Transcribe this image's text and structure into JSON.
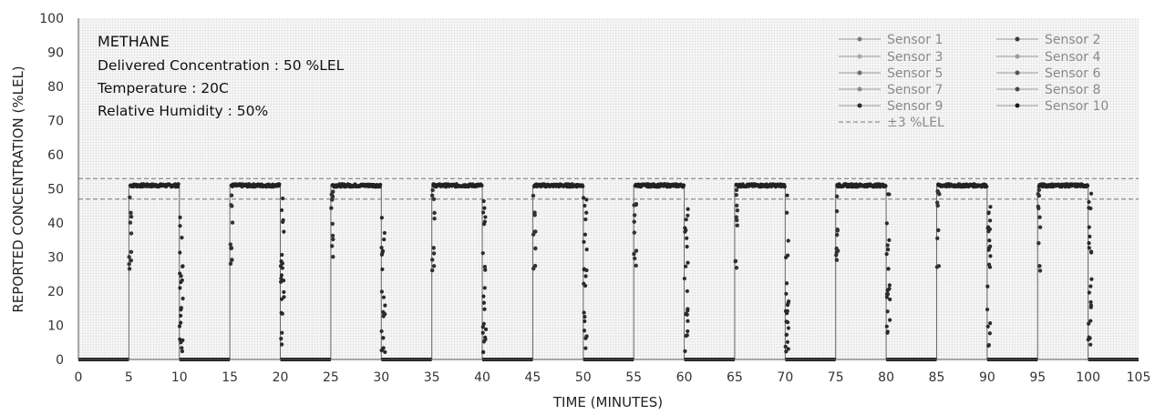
{
  "chart_data": {
    "type": "scatter",
    "xlabel": "TIME (MINUTES)",
    "ylabel": "REPORTED CONCENTRATION  (%LEL)",
    "xlim": [
      0,
      105
    ],
    "ylim": [
      0,
      100
    ],
    "xticks": [
      0,
      5,
      10,
      15,
      20,
      25,
      30,
      35,
      40,
      45,
      50,
      55,
      60,
      65,
      70,
      75,
      80,
      85,
      90,
      95,
      100,
      105
    ],
    "yticks": [
      0,
      10,
      20,
      30,
      40,
      50,
      60,
      70,
      80,
      90,
      100
    ],
    "grid": false,
    "legend_position": "top-right",
    "annotations": {
      "title": "METHANE",
      "lines": [
        "Delivered Concentration : 50 %LEL",
        "Temperature : 20C",
        "Relative Humidity : 50%"
      ]
    },
    "reference_lines": {
      "label": "±3 %LEL",
      "values": [
        53,
        47
      ],
      "style": "dashed"
    },
    "exposure": {
      "on_starts": [
        5,
        15,
        25,
        35,
        45,
        55,
        65,
        75,
        85,
        95
      ],
      "on_duration": 5,
      "plateau": 51,
      "baseline": 0
    },
    "series": [
      {
        "name": "Sensor 1",
        "color": "#7a7a7a"
      },
      {
        "name": "Sensor 2",
        "color": "#3a3a3a"
      },
      {
        "name": "Sensor 3",
        "color": "#a8a8a8"
      },
      {
        "name": "Sensor 4",
        "color": "#9a9a9a"
      },
      {
        "name": "Sensor 5",
        "color": "#6e6e6e"
      },
      {
        "name": "Sensor 6",
        "color": "#555555"
      },
      {
        "name": "Sensor 7",
        "color": "#8c8c8c"
      },
      {
        "name": "Sensor 8",
        "color": "#4a4a4a"
      },
      {
        "name": "Sensor 9",
        "color": "#2a2a2a"
      },
      {
        "name": "Sensor 10",
        "color": "#1a1a1a"
      }
    ]
  }
}
